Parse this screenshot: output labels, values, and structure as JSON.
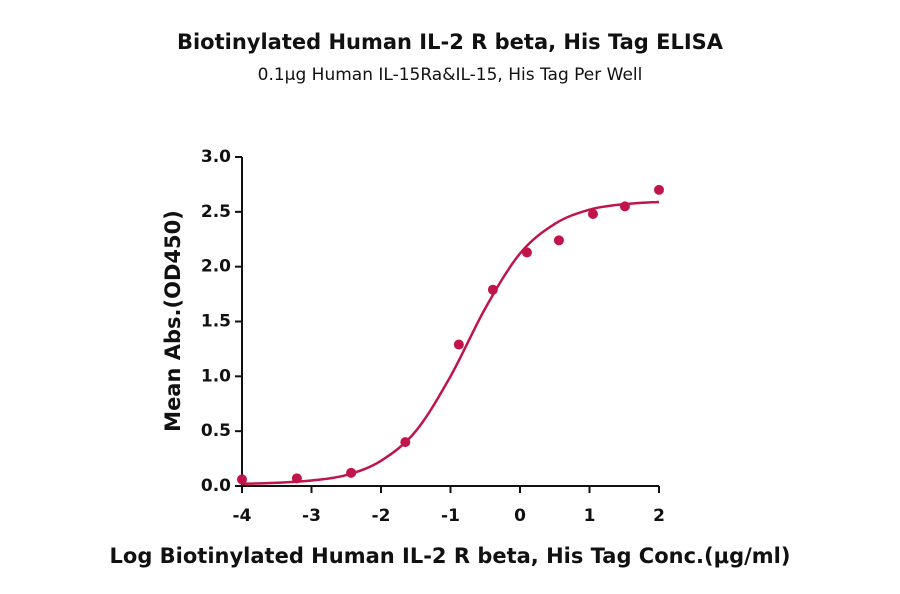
{
  "chart_data": {
    "type": "scatter",
    "title": "Biotinylated Human IL-2 R beta, His Tag ELISA",
    "subtitle": "0.1μg Human IL-15Ra&IL-15, His Tag Per Well",
    "x_label": "Log Biotinylated Human IL-2 R beta, His Tag Conc.(μg/ml)",
    "y_label": "Mean Abs.(OD450)",
    "xlim": [
      -4,
      2
    ],
    "xticks": [
      -4,
      -3,
      -2,
      -1,
      0,
      1,
      2
    ],
    "ylim": [
      0,
      3
    ],
    "yticks": [
      {
        "value": 0,
        "label": "0.0"
      },
      {
        "value": 0.5,
        "label": "0.5"
      },
      {
        "value": 1,
        "label": "1.0"
      },
      {
        "value": 1.5,
        "label": "1.5"
      },
      {
        "value": 2,
        "label": "2.0"
      },
      {
        "value": 2.5,
        "label": "2.5"
      },
      {
        "value": 3,
        "label": "3.0"
      }
    ],
    "series": [
      {
        "color": "#c0144b",
        "mode": "markers",
        "x": [
          -4.0,
          -3.21,
          -2.43,
          -1.65,
          -0.88,
          -0.39,
          0.1,
          0.56,
          1.05,
          1.51,
          2.0
        ],
        "values": [
          0.06,
          0.07,
          0.12,
          0.4,
          1.29,
          1.79,
          2.13,
          2.24,
          2.48,
          2.55,
          2.7
        ]
      },
      {
        "color": "#c0144b",
        "mode": "line",
        "x": [
          -4,
          -3.5,
          -3,
          -2.5,
          -2,
          -1.5,
          -1,
          -0.5,
          0,
          0.5,
          1,
          1.5,
          2
        ],
        "values": [
          0.02,
          0.03,
          0.05,
          0.1,
          0.23,
          0.5,
          1.0,
          1.62,
          2.12,
          2.39,
          2.52,
          2.57,
          2.59
        ]
      }
    ]
  }
}
